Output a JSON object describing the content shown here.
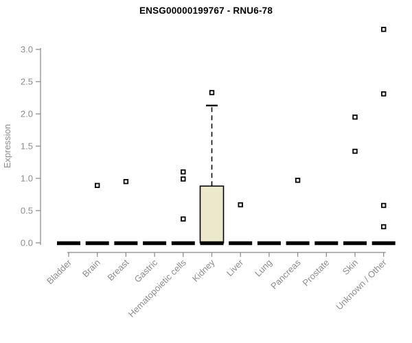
{
  "chart_data": {
    "type": "boxplot",
    "title": "ENSG00000199767 - RNU6-78",
    "xlabel": "",
    "ylabel": "Expression",
    "ylim": [
      0,
      3.32
    ],
    "yticks": [
      0.0,
      0.5,
      1.0,
      1.5,
      2.0,
      2.5,
      3.0
    ],
    "ytick_labels": [
      "0.0",
      "0.5",
      "1.0",
      "1.5",
      "2.0",
      "2.5",
      "3.0"
    ],
    "grid": false,
    "legend": null,
    "categories": [
      "Bladder",
      "Brain",
      "Breast",
      "Gastric",
      "Hematopoietic cells",
      "Kidney",
      "Liver",
      "Lung",
      "Pancreas",
      "Prostate",
      "Skin",
      "Unknown / Other"
    ],
    "boxes": [
      {
        "category": "Bladder",
        "q1": 0,
        "median": 0,
        "q3": 0,
        "whisker_low": 0,
        "whisker_high": 0,
        "outliers": []
      },
      {
        "category": "Brain",
        "q1": 0,
        "median": 0,
        "q3": 0,
        "whisker_low": 0,
        "whisker_high": 0,
        "outliers": [
          0.89
        ]
      },
      {
        "category": "Breast",
        "q1": 0,
        "median": 0,
        "q3": 0,
        "whisker_low": 0,
        "whisker_high": 0,
        "outliers": [
          0.95
        ]
      },
      {
        "category": "Gastric",
        "q1": 0,
        "median": 0,
        "q3": 0,
        "whisker_low": 0,
        "whisker_high": 0,
        "outliers": []
      },
      {
        "category": "Hematopoietic cells",
        "q1": 0,
        "median": 0,
        "q3": 0,
        "whisker_low": 0,
        "whisker_high": 0,
        "outliers": [
          1.1,
          0.99,
          0.37
        ]
      },
      {
        "category": "Kidney",
        "q1": 0,
        "median": 0,
        "q3": 0.88,
        "whisker_low": 0,
        "whisker_high": 2.13,
        "outliers": [
          2.33
        ]
      },
      {
        "category": "Liver",
        "q1": 0,
        "median": 0,
        "q3": 0,
        "whisker_low": 0,
        "whisker_high": 0,
        "outliers": [
          0.59
        ]
      },
      {
        "category": "Lung",
        "q1": 0,
        "median": 0,
        "q3": 0,
        "whisker_low": 0,
        "whisker_high": 0,
        "outliers": []
      },
      {
        "category": "Pancreas",
        "q1": 0,
        "median": 0,
        "q3": 0,
        "whisker_low": 0,
        "whisker_high": 0,
        "outliers": [
          0.97
        ]
      },
      {
        "category": "Prostate",
        "q1": 0,
        "median": 0,
        "q3": 0,
        "whisker_low": 0,
        "whisker_high": 0,
        "outliers": []
      },
      {
        "category": "Skin",
        "q1": 0,
        "median": 0,
        "q3": 0,
        "whisker_low": 0,
        "whisker_high": 0,
        "outliers": [
          1.95,
          1.42
        ]
      },
      {
        "category": "Unknown / Other",
        "q1": 0,
        "median": 0,
        "q3": 0,
        "whisker_low": 0,
        "whisker_high": 0,
        "outliers": [
          3.31,
          2.31,
          0.58,
          0.25
        ]
      }
    ],
    "colors": {
      "box_fill": "#ece8cc",
      "box_border": "#000000",
      "median": "#000000",
      "whisker": "#000000",
      "outlier": "#000000",
      "axis_line": "#878787",
      "axis_text": "#8c8c8c",
      "title": "#000000",
      "background": "#ffffff"
    }
  }
}
